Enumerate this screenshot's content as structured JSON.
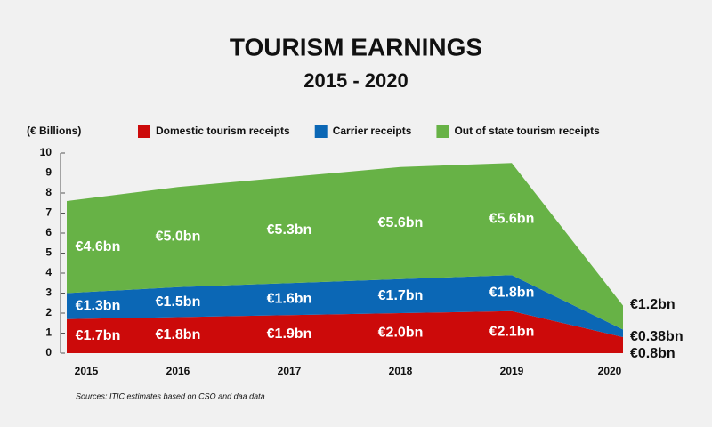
{
  "chart_data": {
    "type": "stacked-area",
    "title": "TOURISM EARNINGS",
    "subtitle": "2015 - 2020",
    "y_label": "(€ Billions)",
    "source": "Sources: ITIC estimates based on CSO and daa data",
    "categories": [
      "2015",
      "2016",
      "2017",
      "2018",
      "2019",
      "2020"
    ],
    "series": [
      {
        "name": "Domestic tourism receipts",
        "color": "#cc0a0a",
        "values": [
          1.7,
          1.8,
          1.9,
          2.0,
          2.1,
          0.8
        ],
        "value_labels": [
          "€1.7bn",
          "€1.8bn",
          "€1.9bn",
          "€2.0bn",
          "€2.1bn",
          "€0.8bn"
        ]
      },
      {
        "name": "Carrier receipts",
        "color": "#0b67b5",
        "values": [
          1.3,
          1.5,
          1.6,
          1.7,
          1.8,
          0.38
        ],
        "value_labels": [
          "€1.3bn",
          "€1.5bn",
          "€1.6bn",
          "€1.7bn",
          "€1.8bn",
          "€0.38bn"
        ]
      },
      {
        "name": "Out of state tourism receipts",
        "color": "#67b246",
        "values": [
          4.6,
          5.0,
          5.3,
          5.6,
          5.6,
          1.2
        ],
        "value_labels": [
          "€4.6bn",
          "€5.0bn",
          "€5.3bn",
          "€5.6bn",
          "€5.6bn",
          "€1.2bn"
        ]
      }
    ],
    "ylim": [
      0,
      10
    ],
    "yticks": [
      0,
      1,
      2,
      3,
      4,
      5,
      6,
      7,
      8,
      9,
      10
    ]
  }
}
